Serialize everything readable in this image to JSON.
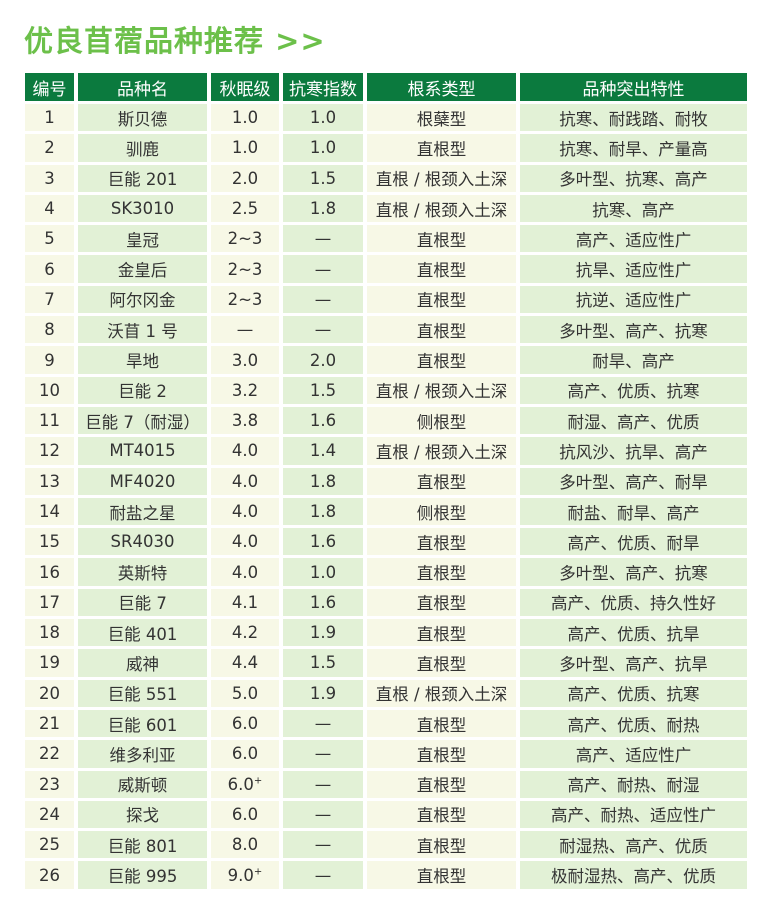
{
  "title": "优良苜蓿品种推荐 >>",
  "colors": {
    "title": "#6cc04a",
    "header_bg": "#0b7a3e",
    "cell_yellow": "#f7f8e6",
    "cell_green": "#e2f1d6"
  },
  "columns": [
    "编号",
    "品种名",
    "秋眠级",
    "抗寒指数",
    "根系类型",
    "品种突出特性"
  ],
  "rows": [
    [
      "1",
      "斯贝德",
      "1.0",
      "1.0",
      "根蘖型",
      "抗寒、耐践踏、耐牧"
    ],
    [
      "2",
      "驯鹿",
      "1.0",
      "1.0",
      "直根型",
      "抗寒、耐旱、产量高"
    ],
    [
      "3",
      "巨能 201",
      "2.0",
      "1.5",
      "直根 / 根颈入土深",
      "多叶型、抗寒、高产"
    ],
    [
      "4",
      "SK3010",
      "2.5",
      "1.8",
      "直根 / 根颈入土深",
      "抗寒、高产"
    ],
    [
      "5",
      "皇冠",
      "2~3",
      "—",
      "直根型",
      "高产、适应性广"
    ],
    [
      "6",
      "金皇后",
      "2~3",
      "—",
      "直根型",
      "抗旱、适应性广"
    ],
    [
      "7",
      "阿尔冈金",
      "2~3",
      "—",
      "直根型",
      "抗逆、适应性广"
    ],
    [
      "8",
      "沃苜 1 号",
      "—",
      "—",
      "直根型",
      "多叶型、高产、抗寒"
    ],
    [
      "9",
      "旱地",
      "3.0",
      "2.0",
      "直根型",
      "耐旱、高产"
    ],
    [
      "10",
      "巨能 2",
      "3.2",
      "1.5",
      "直根 / 根颈入土深",
      "高产、优质、抗寒"
    ],
    [
      "11",
      "巨能 7（耐湿）",
      "3.8",
      "1.6",
      "侧根型",
      "耐湿、高产、优质"
    ],
    [
      "12",
      "MT4015",
      "4.0",
      "1.4",
      "直根 / 根颈入土深",
      "抗风沙、抗旱、高产"
    ],
    [
      "13",
      "MF4020",
      "4.0",
      "1.8",
      "直根型",
      "多叶型、高产、耐旱"
    ],
    [
      "14",
      "耐盐之星",
      "4.0",
      "1.8",
      "侧根型",
      "耐盐、耐旱、高产"
    ],
    [
      "15",
      "SR4030",
      "4.0",
      "1.6",
      "直根型",
      "高产、优质、耐旱"
    ],
    [
      "16",
      "英斯特",
      "4.0",
      "1.0",
      "直根型",
      "多叶型、高产、抗寒"
    ],
    [
      "17",
      "巨能 7",
      "4.1",
      "1.6",
      "直根型",
      "高产、优质、持久性好"
    ],
    [
      "18",
      "巨能 401",
      "4.2",
      "1.9",
      "直根型",
      "高产、优质、抗旱"
    ],
    [
      "19",
      "威神",
      "4.4",
      "1.5",
      "直根型",
      "多叶型、高产、抗旱"
    ],
    [
      "20",
      "巨能 551",
      "5.0",
      "1.9",
      "直根 / 根颈入土深",
      "高产、优质、抗寒"
    ],
    [
      "21",
      "巨能 601",
      "6.0",
      "—",
      "直根型",
      "高产、优质、耐热"
    ],
    [
      "22",
      "维多利亚",
      "6.0",
      "—",
      "直根型",
      "高产、适应性广"
    ],
    [
      "23",
      "威斯顿",
      "6.0+",
      "—",
      "直根型",
      "高产、耐热、耐湿"
    ],
    [
      "24",
      "探戈",
      "6.0",
      "—",
      "直根型",
      "高产、耐热、适应性广"
    ],
    [
      "25",
      "巨能 801",
      "8.0",
      "—",
      "直根型",
      "耐湿热、高产、优质"
    ],
    [
      "26",
      "巨能 995",
      "9.0+",
      "—",
      "直根型",
      "极耐湿热、高产、优质"
    ]
  ]
}
